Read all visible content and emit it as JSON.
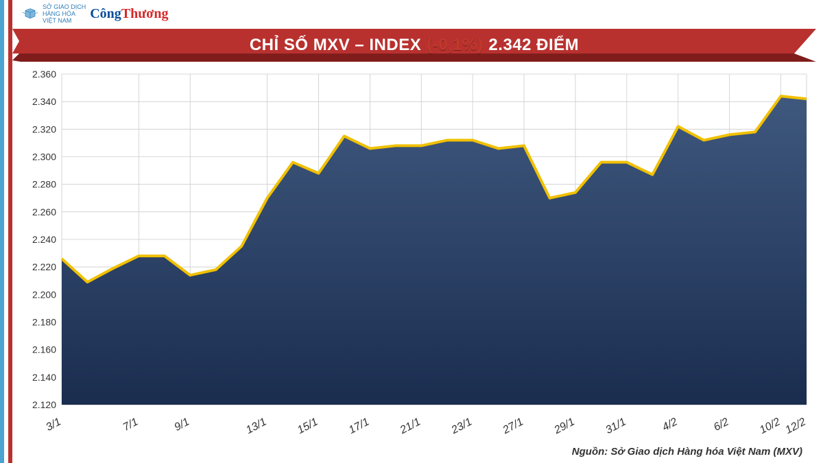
{
  "sideStripes": [
    "#4aa3d1",
    "#ffffff",
    "#b8312f"
  ],
  "logos": {
    "mxv": {
      "lines": [
        "SỞ GIAO DỊCH",
        "HÀNG HÓA",
        "VIỆT NAM"
      ],
      "color": "#2d7db8"
    },
    "congThuong": {
      "cong": "Công",
      "thuong": "Thương",
      "colorCong": "#0a4e9b",
      "colorThuong": "#d62828"
    }
  },
  "banner": {
    "bg": "#b8312f",
    "shadow": "#7f1d1c",
    "parts": {
      "prefix": "CHỈ SỐ MXV – INDEX",
      "change": "(-0,1%)",
      "value": "2.342 ĐIỂM"
    },
    "colors": {
      "prefix": "#ffffff",
      "change": "#c0392b",
      "value": "#ffffff"
    }
  },
  "chart": {
    "type": "area-line",
    "plotBg": "#ffffff",
    "gridColor": "#cccccc",
    "lineColor": "#f0c000",
    "lineWidth": 4,
    "areaTop": "#3f587e",
    "areaBottom": "#1a2d4f",
    "yMin": 2120,
    "yMax": 2360,
    "yStep": 20,
    "yTicks": [
      2120,
      2140,
      2160,
      2180,
      2200,
      2220,
      2240,
      2260,
      2280,
      2300,
      2320,
      2340,
      2360
    ],
    "yTickLabels": [
      "2.120",
      "2.140",
      "2.160",
      "2.180",
      "2.200",
      "2.220",
      "2.240",
      "2.260",
      "2.280",
      "2.300",
      "2.320",
      "2.340",
      "2.360"
    ],
    "xLabels": [
      "3/1",
      "7/1",
      "9/1",
      "13/1",
      "15/1",
      "17/1",
      "21/1",
      "23/1",
      "27/1",
      "29/1",
      "31/1",
      "4/2",
      "6/2",
      "10/2",
      "12/2"
    ],
    "xLabelIndices": [
      0,
      3,
      5,
      8,
      10,
      12,
      14,
      16,
      18,
      20,
      22,
      24,
      26,
      28,
      29
    ],
    "series": [
      2226,
      2209,
      2219,
      2228,
      2228,
      2214,
      2218,
      2235,
      2270,
      2296,
      2288,
      2315,
      2306,
      2308,
      2308,
      2312,
      2312,
      2306,
      2308,
      2270,
      2274,
      2296,
      2296,
      2287,
      2322,
      2312,
      2316,
      2318,
      2344,
      2342
    ]
  },
  "source": "Nguồn: Sở Giao dịch Hàng hóa Việt Nam (MXV)"
}
